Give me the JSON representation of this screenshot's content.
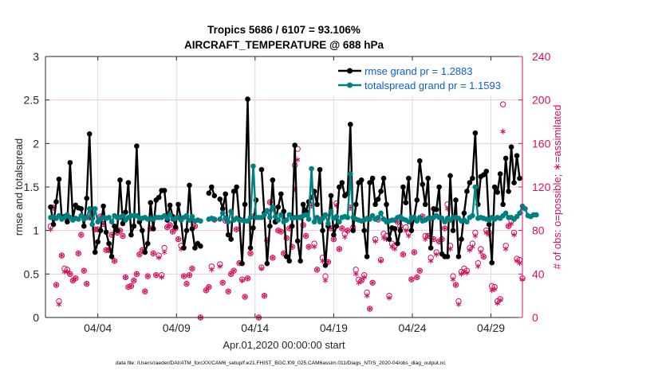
{
  "chart_data": {
    "type": "line",
    "title": "Tropics 5686 / 6107 = 93.106%",
    "subtitle": "AIRCRAFT_TEMPERATURE @ 688 hPa",
    "xlabel": "Apr.01,2020 00:00:00 start",
    "ylabel": "rmse and totalspread",
    "y2label": "# of obs: o=possible; ∗=assimilated",
    "ylim": [
      0,
      3
    ],
    "y2lim": [
      0,
      240
    ],
    "yticks": [
      "0",
      "0.5",
      "1",
      "1.5",
      "2",
      "2.5",
      "3"
    ],
    "y2ticks": [
      "0",
      "40",
      "80",
      "120",
      "160",
      "200",
      "240"
    ],
    "xticks": [
      "04/04",
      "04/09",
      "04/14",
      "04/19",
      "04/24",
      "04/29"
    ],
    "xtick_days": [
      3,
      8,
      13,
      18,
      23,
      28
    ],
    "xlim_days": [
      -0.33,
      30.0
    ],
    "grid": true,
    "legend_position": "top-right",
    "legend": [
      {
        "label": "rmse grand pr = 1.2883",
        "color": "#000000"
      },
      {
        "label": "totalspread grand pr = 1.1593",
        "color": "#008080"
      }
    ],
    "x_step_days": 0.25,
    "series": [
      {
        "name": "rmse",
        "color": "#000000",
        "values": [
          1.27,
          1.07,
          1.33,
          1.59,
          1.15,
          1.16,
          1.1,
          1.78,
          1.14,
          1.29,
          1.26,
          1.25,
          1.05,
          1.37,
          2.11,
          1.14,
          0.75,
          0.87,
          1.0,
          1.28,
          0.98,
          0.85,
          0.7,
          1.05,
          1.0,
          1.58,
          1.08,
          1.21,
          1.55,
          0.95,
          1.05,
          1.97,
          1.1,
          1.0,
          0.75,
          0.85,
          1.32,
          1.02,
          1.35,
          1.38,
          1.46,
          1.46,
          1.12,
          1.29,
          1.16,
          1.04,
          1.3,
          1.12,
          0.8,
          1.0,
          1.52,
          1.02,
          0.8,
          0.85,
          0.82,
          null,
          null,
          1.43,
          1.5,
          1.4,
          null,
          1.36,
          1.25,
          1.42,
          0.95,
          0.9,
          1.45,
          1.5,
          1.13,
          0.62,
          1.3,
          2.51,
          0.8,
          1.03,
          1.35,
          null,
          1.7,
          1.2,
          0.62,
          1.05,
          1.58,
          1.1,
          1.27,
          1.42,
          1.22,
          0.7,
          0.65,
          1.05,
          1.98,
          0.88,
          0.65,
          1.3,
          1.22,
          1.33,
          1.38,
          1.45,
          1.3,
          1.7,
          1.0,
          0.6,
          1.05,
          1.4,
          0.95,
          1.05,
          1.5,
          1.55,
          1.4,
          1.42,
          2.22,
          1.0,
          1.3,
          1.55,
          1.58,
          1.0,
          0.7,
          1.55,
          1.6,
          1.3,
          1.36,
          1.45,
          1.6,
          1.3,
          0.9,
          1.03,
          1.02,
          0.85,
          1.0,
          1.5,
          1.32,
          1.6,
          1.0,
          1.15,
          1.35,
          1.8,
          1.53,
          1.3,
          1.6,
          0.8,
          1.25,
          1.24,
          1.5,
          0.73,
          0.7,
          0.7,
          1.63,
          1.0,
          1.35,
          0.7,
          0.9,
          1.2,
          1.45,
          1.55,
          1.6,
          2.12,
          1.3,
          1.62,
          1.64,
          1.68,
          1.07,
          0.63,
          1.5,
          1.44,
          1.65,
          1.3,
          1.83,
          1.45,
          1.96,
          1.55,
          1.86,
          1.6
        ]
      },
      {
        "name": "totalspread",
        "color": "#008080",
        "values": [
          1.15,
          1.15,
          1.14,
          1.17,
          1.13,
          1.15,
          1.18,
          1.15,
          1.12,
          1.14,
          1.13,
          1.17,
          1.13,
          1.15,
          1.25,
          1.07,
          1.25,
          1.1,
          1.13,
          1.15,
          1.14,
          1.15,
          1.1,
          1.17,
          1.15,
          1.15,
          1.17,
          1.12,
          1.15,
          1.17,
          1.17,
          1.17,
          1.14,
          1.14,
          1.15,
          1.13,
          1.13,
          1.13,
          1.15,
          1.15,
          1.15,
          1.17,
          1.14,
          1.18,
          1.13,
          1.14,
          1.15,
          1.12,
          1.15,
          1.17,
          1.12,
          1.16,
          1.11,
          1.12,
          1.11,
          null,
          null,
          1.13,
          1.14,
          1.13,
          null,
          1.13,
          1.2,
          1.14,
          1.1,
          1.22,
          1.12,
          1.14,
          1.12,
          1.12,
          1.11,
          1.11,
          1.15,
          1.74,
          1.15,
          1.15,
          1.15,
          1.18,
          1.23,
          1.15,
          1.27,
          1.16,
          1.12,
          1.18,
          1.1,
          1.12,
          1.18,
          1.14,
          1.15,
          1.15,
          1.15,
          1.17,
          1.18,
          1.13,
          1.71,
          1.1,
          1.15,
          1.1,
          1.14,
          1.18,
          1.08,
          1.22,
          1.14,
          1.16,
          1.1,
          1.15,
          1.16,
          1.15,
          1.65,
          1.15,
          1.13,
          1.12,
          1.11,
          1.12,
          1.14,
          1.13,
          1.17,
          1.13,
          1.15,
          1.2,
          1.13,
          1.1,
          1.11,
          1.12,
          1.12,
          1.15,
          1.16,
          1.13,
          1.12,
          1.1,
          1.15,
          1.15,
          1.11,
          1.15,
          1.11,
          1.12,
          1.14,
          1.14,
          1.15,
          1.17,
          1.15,
          1.14,
          1.1,
          1.14,
          1.12,
          1.15,
          1.15,
          1.14,
          1.11,
          1.12,
          1.1,
          1.15,
          1.17,
          1.5,
          1.14,
          1.15,
          1.14,
          1.13,
          1.12,
          1.15,
          1.13,
          1.15,
          1.14,
          1.17,
          1.2,
          1.15,
          1.15,
          1.13,
          1.16,
          1.2,
          1.28,
          1.25,
          1.17,
          1.16,
          1.18,
          1.18
        ]
      },
      {
        "name": "obs_possible",
        "axis": "right",
        "marker": "o",
        "color": "#d6105f",
        "values": [
          84,
          101,
          30,
          15,
          57,
          45,
          44,
          40,
          34,
          36,
          59,
          76,
          43,
          31,
          92,
          95,
          81,
          81,
          93,
          86,
          62,
          62,
          76,
          52,
          78,
          80,
          75,
          37,
          28,
          29,
          34,
          40,
          58,
          62,
          24,
          38,
          82,
          59,
          39,
          57,
          39,
          64,
          83,
          85,
          79,
          82,
          72,
          66,
          38,
          31,
          39,
          45,
          84,
          null,
          0,
          null,
          25,
          28,
          47,
          90,
          null,
          49,
          32,
          89,
          24,
          40,
          43,
          81,
          50,
          35,
          19,
          36,
          59,
          93,
          null,
          0,
          46,
          20,
          71,
          106,
          55,
          88,
          80,
          79,
          59,
          73,
          82,
          65,
          140,
          155,
          92,
          85,
          75,
          65,
          103,
          68,
          44,
          90,
          55,
          38,
          51,
          82,
          72,
          105,
          63,
          82,
          77,
          80,
          101,
          83,
          44,
          35,
          34,
          39,
          23,
          8,
          32,
          72,
          90,
          53,
          77,
          75,
          20,
          68,
          66,
          88,
          84,
          58,
          83,
          78,
          35,
          60,
          37,
          43,
          93,
          75,
          75,
          55,
          72,
          60,
          70,
          72,
          82,
          104,
          66,
          38,
          30,
          15,
          42,
          45,
          43,
          64,
          68,
          78,
          50,
          63,
          56,
          80,
          78,
          29,
          28,
          15,
          17,
          196,
          66,
          84,
          89,
          78,
          54,
          53,
          36,
          66,
          83,
          100,
          85,
          113,
          120,
          97
        ]
      },
      {
        "name": "obs_assimilated",
        "axis": "right",
        "marker": "*",
        "color": "#d6105f",
        "values": [
          81,
          101,
          30,
          12,
          57,
          42,
          42,
          40,
          34,
          36,
          59,
          76,
          43,
          31,
          92,
          95,
          81,
          81,
          93,
          86,
          62,
          62,
          76,
          52,
          78,
          80,
          75,
          37,
          28,
          29,
          34,
          40,
          58,
          62,
          24,
          38,
          82,
          59,
          39,
          55,
          37,
          60,
          83,
          85,
          79,
          82,
          72,
          63,
          38,
          31,
          39,
          45,
          84,
          null,
          0,
          null,
          25,
          28,
          44,
          90,
          null,
          47,
          32,
          89,
          24,
          40,
          43,
          81,
          50,
          34,
          19,
          36,
          59,
          93,
          null,
          0,
          45,
          20,
          71,
          106,
          55,
          88,
          80,
          79,
          59,
          73,
          82,
          65,
          118,
          145,
          92,
          85,
          75,
          65,
          103,
          65,
          44,
          90,
          52,
          34,
          51,
          82,
          72,
          103,
          63,
          82,
          74,
          80,
          101,
          83,
          40,
          32,
          34,
          37,
          20,
          8,
          32,
          70,
          90,
          52,
          73,
          72,
          18,
          65,
          63,
          88,
          82,
          58,
          80,
          75,
          35,
          60,
          37,
          43,
          93,
          72,
          75,
          52,
          72,
          58,
          70,
          72,
          82,
          100,
          63,
          35,
          30,
          12,
          40,
          42,
          41,
          62,
          65,
          75,
          47,
          60,
          56,
          78,
          76,
          25,
          26,
          13,
          16,
          171,
          63,
          84,
          86,
          76,
          52,
          50,
          35,
          64,
          80,
          95,
          82,
          88,
          85,
          85
        ]
      }
    ]
  },
  "footer": {
    "data_file": "data file: /Users/raeder/DAI/ATM_forcXX/CAM6_setup/f.e21.FHIST_BGC.f09_025.CAM6assim.011/Diags_NTrS_2020-04/obs_diag_output.nc"
  }
}
